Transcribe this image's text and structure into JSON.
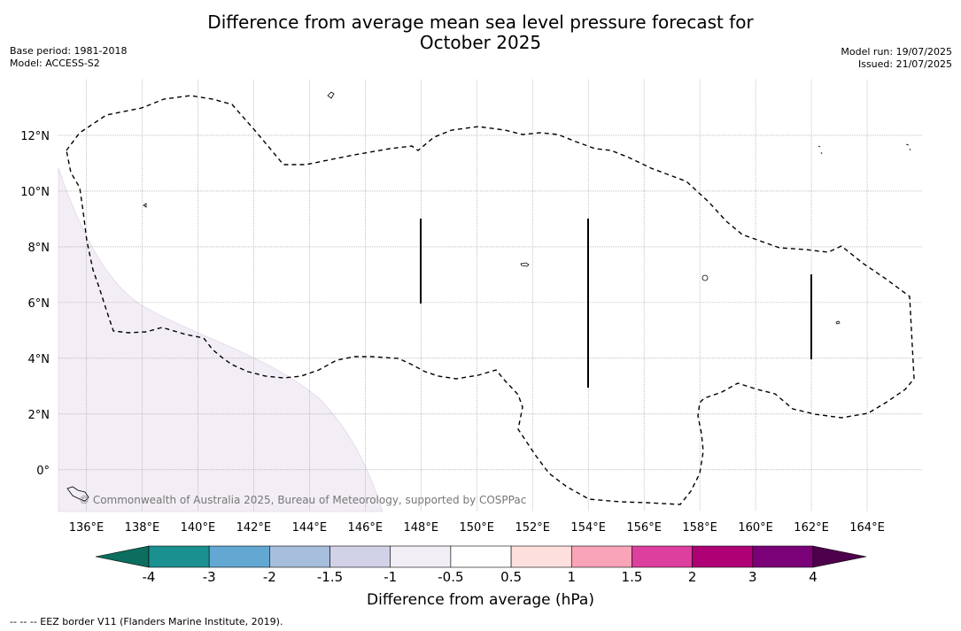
{
  "title": "Difference from average mean sea level pressure forecast for October 2025",
  "header": {
    "base_period": "Base period: 1981-2018",
    "model": "Model: ACCESS-S2",
    "model_run": "Model run: 19/07/2025",
    "issued": "Issued: 21/07/2025"
  },
  "map": {
    "lon_range": [
      135,
      166
    ],
    "lat_range": [
      -1.5,
      14
    ],
    "lon_ticks": [
      "136°E",
      "138°E",
      "140°E",
      "142°E",
      "144°E",
      "146°E",
      "148°E",
      "150°E",
      "152°E",
      "154°E",
      "156°E",
      "158°E",
      "160°E",
      "162°E",
      "164°E"
    ],
    "lat_ticks": [
      "12°N",
      "10°N",
      "8°N",
      "6°N",
      "4°N",
      "2°N",
      "0°"
    ],
    "shaded_region_color": "#f3eef5",
    "eez_style": "dashed",
    "copyright": "© Commonwealth of Australia 2025, Bureau of Meteorology, supported by COSPPac"
  },
  "colorbar": {
    "title": "Difference from average (hPa)",
    "labels": [
      "-4",
      "-3",
      "-2",
      "-1.5",
      "-1",
      "-0.5",
      "0.5",
      "1",
      "1.5",
      "2",
      "3",
      "4"
    ],
    "colors": [
      "#1a9090",
      "#62a8d2",
      "#a7bddc",
      "#d1d1e7",
      "#f2eef6",
      "#ffffff",
      "#fde0dd",
      "#f9a4b8",
      "#dd3f9e",
      "#ae0175",
      "#7a0177"
    ],
    "under_color": "#0b6e5e",
    "over_color": "#4d004b"
  },
  "footnote": "--  --  -- EEZ border V11 (Flanders Marine Institute, 2019)."
}
